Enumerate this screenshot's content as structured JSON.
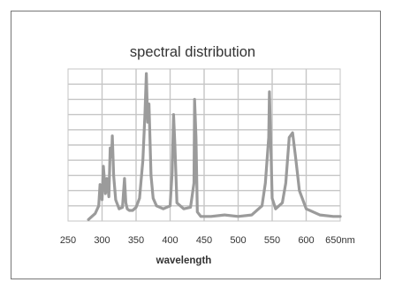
{
  "chart_data": {
    "type": "line",
    "title": "spectral distribution",
    "xlabel": "wavelength",
    "ylabel": "",
    "x_tick_labels": [
      "250",
      "300",
      "350",
      "400",
      "450",
      "500",
      "550",
      "600",
      "650nm"
    ],
    "xlim": [
      250,
      650
    ],
    "ylim": [
      0,
      10
    ],
    "grid": true,
    "legend": "none",
    "colors": {
      "line": "#9b9b9b",
      "grid": "#c6c6c6",
      "frame": "#777777",
      "text": "#333333"
    },
    "series": [
      {
        "x": [
          280,
          285,
          290,
          295,
          297,
          300,
          302,
          305,
          307,
          310,
          312,
          314,
          315,
          317,
          320,
          325,
          330,
          333,
          335,
          337,
          340,
          345,
          350,
          355,
          360,
          363,
          365,
          367,
          369,
          372,
          375,
          380,
          390,
          400,
          403,
          405,
          407,
          410,
          420,
          430,
          435,
          436,
          438,
          440,
          445,
          460,
          480,
          500,
          520,
          535,
          540,
          545,
          546,
          548,
          550,
          555,
          565,
          570,
          575,
          580,
          585,
          590,
          600,
          620,
          640,
          650
        ],
        "y": [
          0.1,
          0.3,
          0.5,
          1.0,
          2.4,
          1.4,
          3.6,
          1.8,
          2.8,
          1.6,
          4.8,
          4.2,
          5.6,
          3.0,
          1.4,
          0.8,
          0.9,
          2.8,
          1.2,
          0.8,
          0.7,
          0.7,
          0.9,
          1.5,
          4.0,
          7.0,
          9.7,
          6.5,
          7.7,
          3.0,
          1.5,
          1.0,
          0.8,
          1.0,
          3.2,
          7.0,
          5.0,
          1.2,
          0.8,
          0.9,
          2.5,
          8.0,
          5.5,
          0.6,
          0.3,
          0.3,
          0.4,
          0.3,
          0.4,
          1.0,
          2.5,
          5.5,
          8.5,
          5.0,
          1.5,
          0.8,
          1.2,
          2.5,
          5.5,
          5.8,
          4.0,
          2.0,
          0.8,
          0.4,
          0.3,
          0.3
        ]
      }
    ]
  }
}
